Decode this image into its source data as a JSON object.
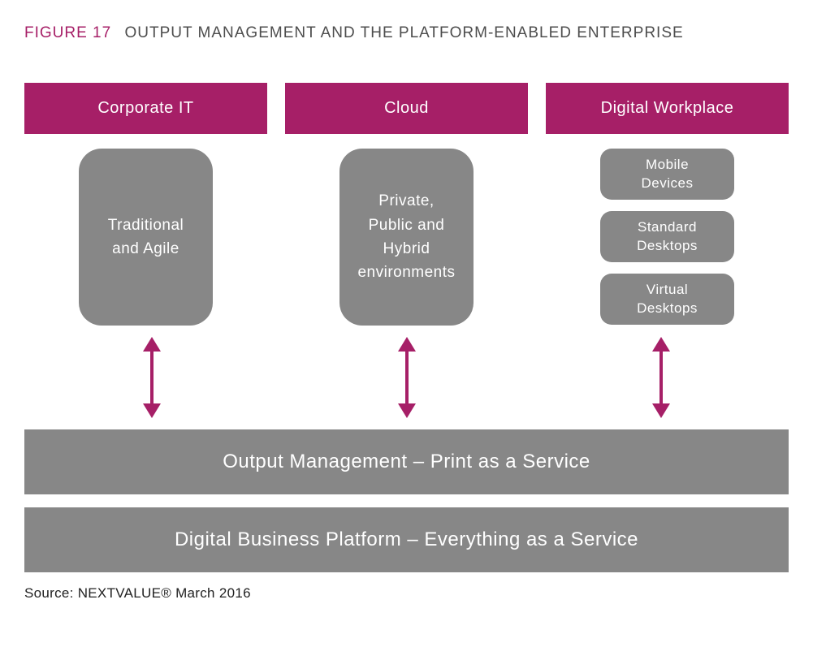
{
  "figure": {
    "label": "FIGURE 17",
    "title": "OUTPUT MANAGEMENT AND THE PLATFORM-ENABLED ENTERPRISE",
    "label_color": "#a61f67",
    "title_color": "#4d4d4d",
    "title_fontsize": 19
  },
  "columns": [
    {
      "header": "Corporate IT",
      "type": "single",
      "content": "Traditional and Agile"
    },
    {
      "header": "Cloud",
      "type": "single",
      "content": "Private, Public and Hybrid environments"
    },
    {
      "header": "Digital Workplace",
      "type": "stack",
      "items": [
        "Mobile Devices",
        "Standard Desktops",
        "Virtual Desktops"
      ]
    }
  ],
  "bottom_bars": [
    "Output Management – Print as a Service",
    "Digital Business Platform – Everything as a Service"
  ],
  "source": "Source: NEXTVALUE® March 2016",
  "style": {
    "header_bg": "#a61f67",
    "header_text": "#ffffff",
    "header_fontsize": 20,
    "box_bg": "#878787",
    "box_text": "#ffffff",
    "big_box_radius": 28,
    "small_box_radius": 14,
    "arrow_color": "#a61f67",
    "wide_bar_fontsize": 24,
    "background": "#ffffff"
  }
}
